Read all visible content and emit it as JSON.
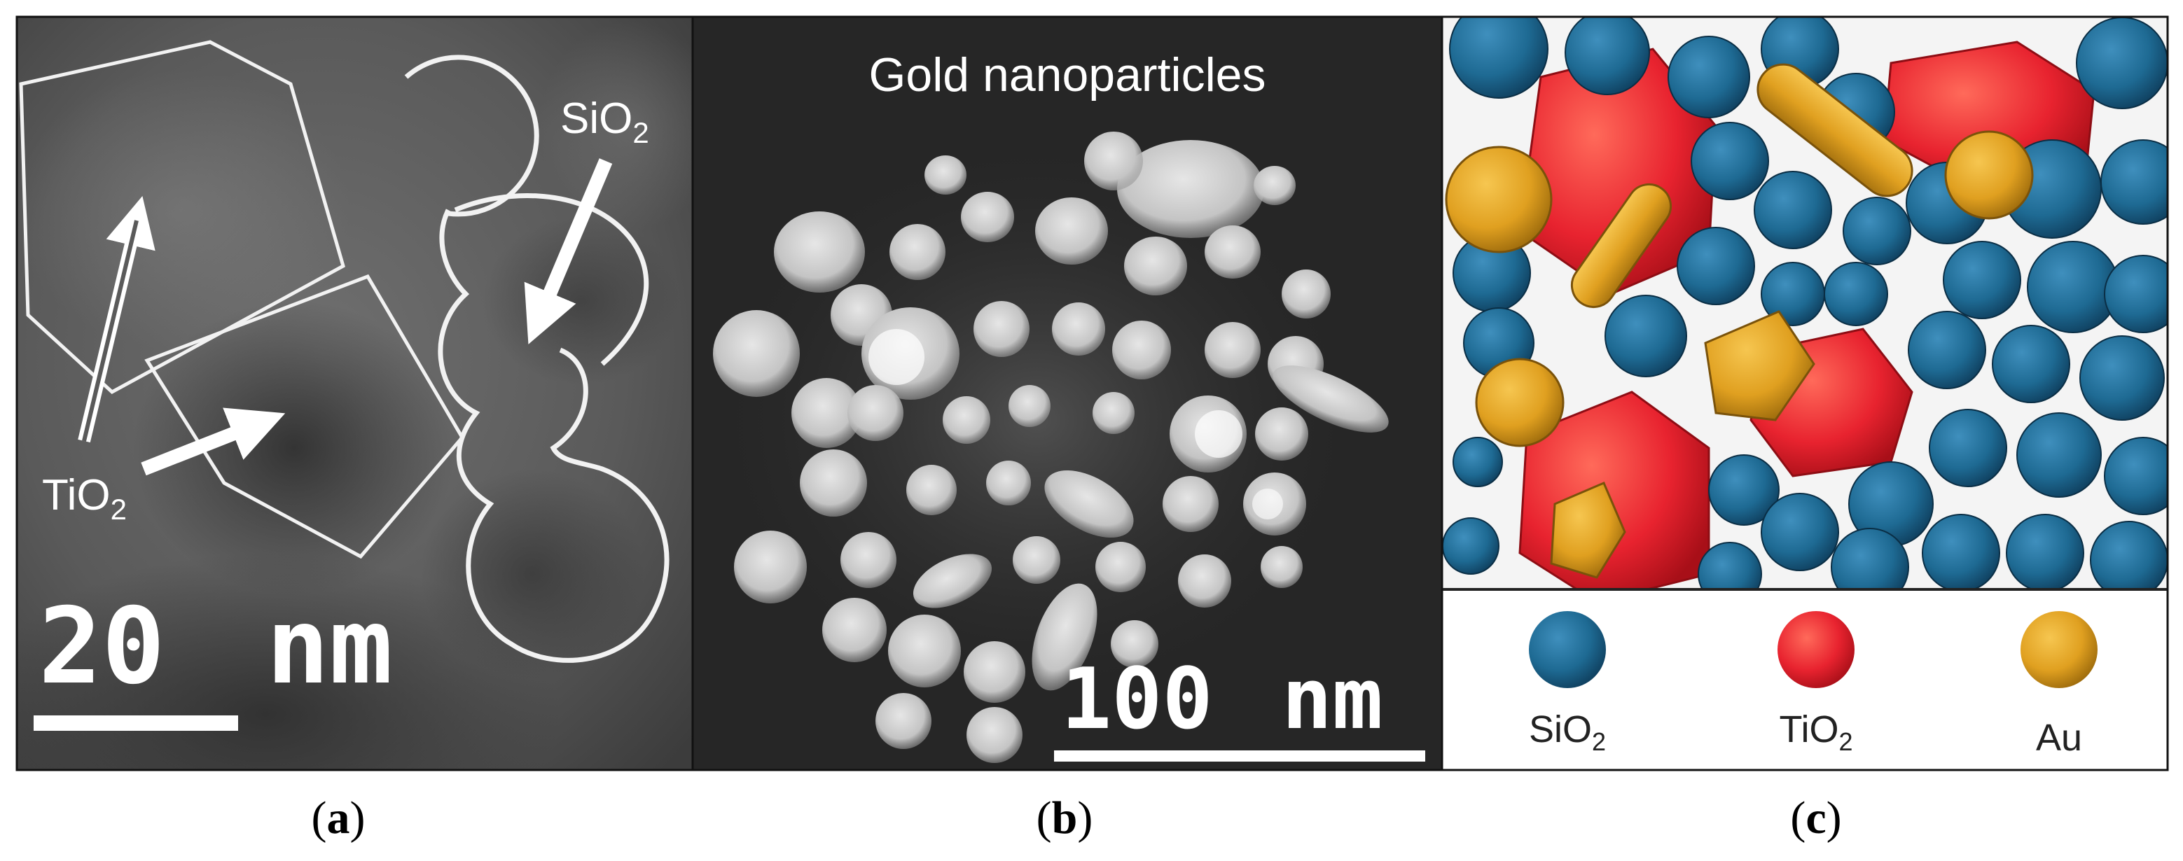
{
  "panels": {
    "a": {
      "caption_open": "(",
      "caption_letter": "a",
      "caption_close": ")",
      "label_tio2_main": "TiO",
      "label_tio2_sub": "2",
      "label_sio2_main": "SiO",
      "label_sio2_sub": "2",
      "scale_bar_value": "20",
      "scale_bar_unit": "nm"
    },
    "b": {
      "caption_open": "(",
      "caption_letter": "b",
      "caption_close": ")",
      "title": "Gold nanoparticles",
      "scale_bar_value": "100",
      "scale_bar_unit": "nm"
    },
    "c": {
      "caption_open": "(",
      "caption_letter": "c",
      "caption_close": ")",
      "legend": [
        {
          "main": "SiO",
          "sub": "2",
          "color": "#1e6a93"
        },
        {
          "main": "TiO",
          "sub": "2",
          "color": "#e8232f"
        },
        {
          "main": "Au",
          "sub": "",
          "color": "#e0a020"
        }
      ]
    }
  },
  "colors": {
    "sio2": "#1e6a93",
    "tio2": "#e8232f",
    "au": "#e0a020",
    "tem_background": "#5a5a5a",
    "stem_background": "#262626"
  }
}
